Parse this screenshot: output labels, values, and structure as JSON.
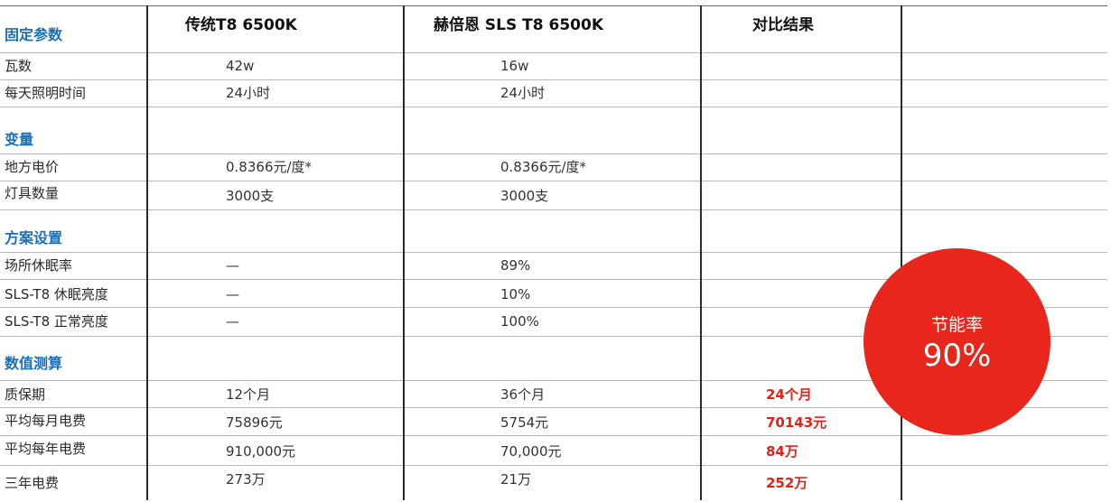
{
  "header": {
    "col1": "传统T8 6500K",
    "col2": "赫倍恩  SLS T8 6500K",
    "col3": "对比结果"
  },
  "sections": {
    "fixed": "固定参数",
    "variables": "变量",
    "scheme": "方案设置",
    "calc": "数值测算"
  },
  "rows": [
    {
      "label": "瓦数",
      "traditional": "42w",
      "sls": "16w",
      "result": ""
    },
    {
      "label": "每天照明时间",
      "traditional": "24小时",
      "sls": "24小时",
      "result": ""
    },
    {
      "label": "地方电价",
      "traditional": "0.8366元/度*",
      "sls": "0.8366元/度*",
      "result": ""
    },
    {
      "label": "灯具数量",
      "traditional": "3000支",
      "sls": "3000支",
      "result": ""
    },
    {
      "label": "场所休眠率",
      "traditional": "—",
      "sls": "89%",
      "result": ""
    },
    {
      "label": "SLS-T8 休眠亮度",
      "traditional": "—",
      "sls": "10%",
      "result": ""
    },
    {
      "label": "SLS-T8 正常亮度",
      "traditional": "—",
      "sls": "100%",
      "result": ""
    },
    {
      "label": "质保期",
      "traditional": "12个月",
      "sls": "36个月",
      "result": "24个月"
    },
    {
      "label": "平均每月电费",
      "traditional": "75896元",
      "sls": "5754元",
      "result": "70143元"
    },
    {
      "label": "平均每年电费",
      "traditional": "910,000元",
      "sls": "70,000元",
      "result": "84万"
    },
    {
      "label": "三年电费",
      "traditional": "273万",
      "sls": "21万",
      "result": "252万"
    }
  ],
  "badge": {
    "label": "节能率",
    "value": "90%",
    "color": "#e8261b"
  },
  "colors": {
    "section": "#1a6fb6",
    "highlight": "#e02316"
  }
}
